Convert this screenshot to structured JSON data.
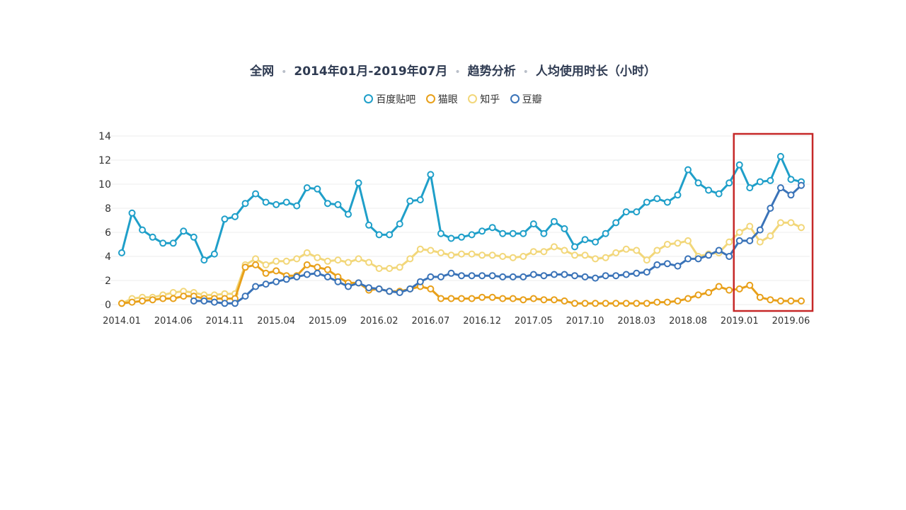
{
  "title_parts": [
    "全网",
    "2014年01月-2019年07月",
    "趋势分析",
    "人均使用时长（小时）"
  ],
  "colors": {
    "百度贴吧": "#1f9fc9",
    "猫眼": "#e8a01a",
    "知乎": "#f2d77a",
    "豆瓣": "#3a73b8",
    "highlight_box": "#c62828",
    "grid": "#eeeeee",
    "axis_text": "#333333"
  },
  "chart_data": {
    "type": "line",
    "title": "全网 · 2014年01月-2019年07月 · 趋势分析 · 人均使用时长（小时）",
    "xlabel": "",
    "ylabel": "",
    "ylim": [
      0,
      14
    ],
    "yticks": [
      0,
      2,
      4,
      6,
      8,
      10,
      12,
      14
    ],
    "xtick_labels": [
      "2014.01",
      "2014.06",
      "2014.11",
      "2015.04",
      "2015.09",
      "2016.02",
      "2016.07",
      "2016.12",
      "2017.05",
      "2017.10",
      "2018.03",
      "2018.08",
      "2019.01",
      "2019.06"
    ],
    "xtick_every": 5,
    "n_points": 67,
    "grid": true,
    "legend_position": "top",
    "x_start": "2014.01",
    "series": [
      {
        "name": "百度贴吧",
        "values": [
          4.3,
          7.6,
          6.2,
          5.6,
          5.1,
          5.1,
          6.1,
          5.6,
          3.7,
          4.2,
          7.1,
          7.3,
          8.4,
          9.2,
          8.5,
          8.3,
          8.5,
          8.2,
          9.7,
          9.6,
          8.4,
          8.3,
          7.5,
          10.1,
          6.6,
          5.8,
          5.8,
          6.7,
          8.6,
          8.7,
          10.8,
          5.9,
          5.5,
          5.6,
          5.8,
          6.1,
          6.4,
          5.9,
          5.9,
          5.9,
          6.7,
          5.9,
          6.9,
          6.3,
          4.8,
          5.4,
          5.2,
          5.9,
          6.8,
          7.7,
          7.7,
          8.5,
          8.8,
          8.5,
          9.1,
          11.2,
          10.1,
          9.5,
          9.2,
          10.1,
          11.6,
          9.7,
          10.2,
          10.3,
          12.3,
          10.4,
          10.2
        ]
      },
      {
        "name": "猫眼",
        "values": [
          0.1,
          0.2,
          0.3,
          0.4,
          0.5,
          0.5,
          0.7,
          0.7,
          0.5,
          0.5,
          0.5,
          0.5,
          3.1,
          3.3,
          2.6,
          2.8,
          2.4,
          2.4,
          3.3,
          3.1,
          2.9,
          2.3,
          1.8,
          1.8,
          1.2,
          1.3,
          1.1,
          1.1,
          1.3,
          1.5,
          1.3,
          0.5,
          0.5,
          0.5,
          0.5,
          0.6,
          0.6,
          0.5,
          0.5,
          0.4,
          0.5,
          0.4,
          0.4,
          0.3,
          0.1,
          0.1,
          0.1,
          0.1,
          0.1,
          0.1,
          0.1,
          0.1,
          0.2,
          0.2,
          0.3,
          0.5,
          0.8,
          1.0,
          1.5,
          1.2,
          1.3,
          1.6,
          0.6,
          0.4,
          0.3,
          0.3,
          0.3
        ]
      },
      {
        "name": "知乎",
        "values": [
          0.1,
          0.5,
          0.6,
          0.6,
          0.8,
          1.0,
          1.1,
          1.0,
          0.8,
          0.8,
          0.9,
          0.9,
          3.3,
          3.8,
          3.3,
          3.6,
          3.6,
          3.8,
          4.3,
          3.9,
          3.6,
          3.7,
          3.5,
          3.8,
          3.5,
          3.0,
          3.0,
          3.1,
          3.8,
          4.6,
          4.5,
          4.3,
          4.1,
          4.2,
          4.2,
          4.1,
          4.1,
          4.0,
          3.9,
          4.0,
          4.4,
          4.4,
          4.8,
          4.5,
          4.1,
          4.1,
          3.8,
          3.9,
          4.3,
          4.6,
          4.5,
          3.7,
          4.5,
          5.0,
          5.1,
          5.3,
          4.0,
          4.2,
          4.3,
          5.2,
          6.0,
          6.5,
          5.2,
          5.7,
          6.8,
          6.8,
          6.4
        ]
      },
      {
        "name": "豆瓣",
        "values": [
          null,
          null,
          null,
          null,
          null,
          null,
          null,
          0.3,
          0.3,
          0.2,
          0.1,
          0.1,
          0.7,
          1.5,
          1.7,
          1.9,
          2.1,
          2.3,
          2.5,
          2.6,
          2.3,
          1.9,
          1.5,
          1.8,
          1.4,
          1.3,
          1.1,
          1.0,
          1.3,
          1.9,
          2.3,
          2.3,
          2.6,
          2.4,
          2.4,
          2.4,
          2.4,
          2.3,
          2.3,
          2.3,
          2.5,
          2.4,
          2.5,
          2.5,
          2.4,
          2.3,
          2.2,
          2.4,
          2.4,
          2.5,
          2.6,
          2.7,
          3.3,
          3.4,
          3.2,
          3.8,
          3.8,
          4.1,
          4.5,
          4.0,
          5.3,
          5.3,
          6.2,
          8.0,
          9.7,
          9.1,
          9.9
        ]
      }
    ],
    "highlight": {
      "x_from": "2019.01",
      "x_to": "2019.07"
    }
  }
}
